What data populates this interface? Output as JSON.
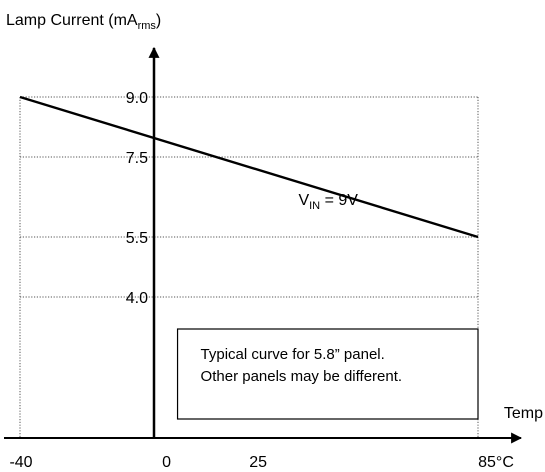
{
  "chart_data": {
    "type": "line",
    "title": "",
    "ylabel": {
      "main": "Lamp Current (mA",
      "sub": "rms",
      "close": ")"
    },
    "xlabel": "Temp",
    "xlim": [
      -40,
      90
    ],
    "ylim": [
      0,
      11
    ],
    "x_ticks": [
      {
        "value": -40,
        "label": "-40"
      },
      {
        "value": 0,
        "label": "0"
      },
      {
        "value": 25,
        "label": "25"
      },
      {
        "value": 85,
        "label": "85°C"
      }
    ],
    "y_ticks": [
      {
        "value": 9.0,
        "label": "9.0"
      },
      {
        "value": 7.5,
        "label": "7.5"
      },
      {
        "value": 5.5,
        "label": "5.5"
      },
      {
        "value": 4.0,
        "label": "4.0"
      }
    ],
    "series": [
      {
        "x": [
          -40,
          85
        ],
        "y": [
          9.0,
          5.5
        ]
      }
    ],
    "annotations": {
      "series_label": {
        "main": "V",
        "sub": "IN",
        "rest": " = 9V",
        "x": 36,
        "y": 6.3
      },
      "note_box": {
        "lines": [
          "Typical curve for 5.8” panel.",
          "Other panels may be different."
        ],
        "x0": 3,
        "x1": 85,
        "y_top": 3.2,
        "y_bottom": 0.95
      }
    },
    "grid": {
      "horizontal_dotted": true,
      "vertical_dotted": true
    },
    "colors": {
      "line": "#000000",
      "grid": "#555555"
    }
  }
}
